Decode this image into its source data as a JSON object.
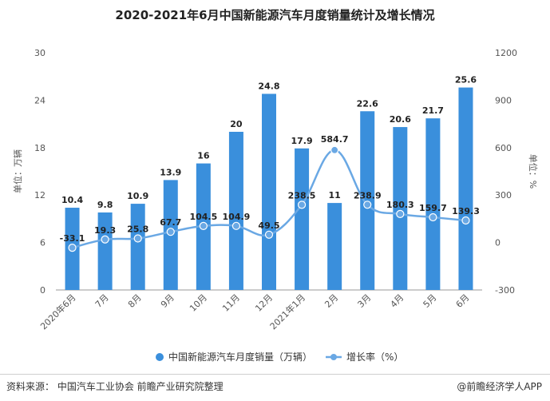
{
  "title": "2020-2021年6月中国新能源汽车月度销量统计及增长情况",
  "source": "资料来源：  中国汽车工业协会 前瞻产业研究院整理",
  "brand": "@前瞻经济学人APP",
  "chart_data": {
    "type": "bar+line",
    "categories": [
      "2020年6月",
      "7月",
      "8月",
      "9月",
      "10月",
      "11月",
      "12月",
      "2021年1月",
      "2月",
      "3月",
      "4月",
      "5月",
      "6月"
    ],
    "series": [
      {
        "name": "中国新能源汽车月度销量（万辆）",
        "type": "bar",
        "axis": "left",
        "color": "#3a8fdc",
        "values": [
          10.4,
          9.8,
          10.9,
          13.9,
          16,
          20,
          24.8,
          17.9,
          11,
          22.6,
          20.6,
          21.7,
          25.6
        ]
      },
      {
        "name": "增长率（%）",
        "type": "line",
        "axis": "right",
        "color": "#6aa8e4",
        "values": [
          -33.1,
          19.3,
          25.8,
          67.7,
          104.5,
          104.9,
          49.5,
          238.5,
          584.7,
          238.9,
          180.3,
          159.7,
          139.3
        ]
      }
    ],
    "y_left": {
      "label": "单位：万辆",
      "min": 0,
      "max": 30,
      "ticks": [
        0,
        6,
        12,
        18,
        24,
        30
      ]
    },
    "y_right": {
      "label": "单位：%",
      "min": -300,
      "max": 1200,
      "ticks": [
        -300,
        0,
        300,
        600,
        900,
        1200
      ]
    },
    "legend_position": "bottom",
    "grid": false
  }
}
